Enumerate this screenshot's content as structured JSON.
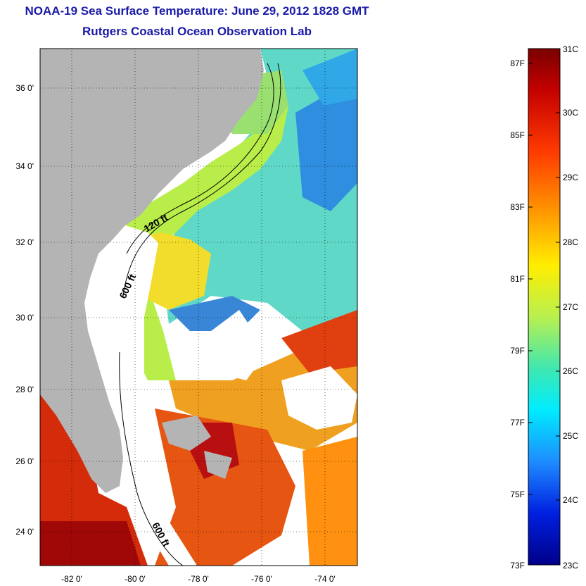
{
  "header": {
    "title": "NOAA-19 Sea Surface Temperature:  June 29, 2012 1828 GMT",
    "subtitle": "Rutgers Coastal Ocean Observation Lab"
  },
  "map": {
    "lat_ticks": [
      "36 0'",
      "34 0'",
      "32 0'",
      "30 0'",
      "28 0'",
      "26 0'",
      "24 0'"
    ],
    "lon_ticks": [
      "-82 0'",
      "-80 0'",
      "-78 0'",
      "-76 0'",
      "-74 0'"
    ],
    "contour_labels": [
      "120 ft",
      "600 ft",
      "600 ft"
    ]
  },
  "colorbar": {
    "celsius_labels": [
      "31C",
      "30C",
      "29C",
      "28C",
      "27C",
      "26C",
      "25C",
      "24C",
      "23C"
    ],
    "fahrenheit_labels": [
      "87F",
      "85F",
      "83F",
      "81F",
      "79F",
      "77F",
      "75F",
      "73F"
    ],
    "range_celsius": [
      23,
      31
    ]
  },
  "colors": {
    "title": "#1a1aa8",
    "land": "#b4b4b4",
    "cloud": "#ffffff"
  }
}
